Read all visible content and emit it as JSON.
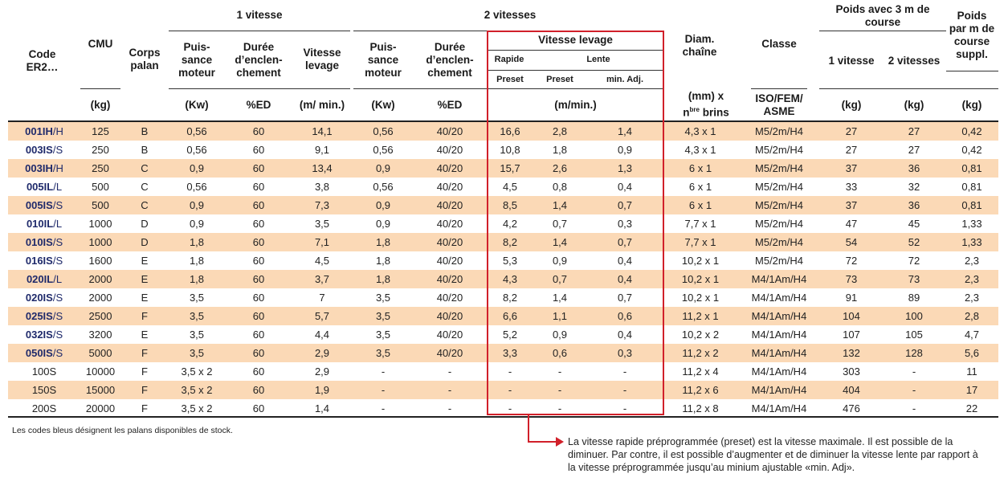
{
  "headers": {
    "group_1v": "1 vitesse",
    "group_2v": "2 vitesses",
    "group_poids": "Poids avec 3 m de course",
    "code": "Code ER2…",
    "cmu": "CMU",
    "corps": "Corps palan",
    "puissance": "Puis-sance moteur",
    "duree": "Durée d’enclen-chement",
    "vitesse": "Vitesse levage",
    "vitesse_levage_box": "Vitesse levage",
    "rapide": "Rapide",
    "lente": "Lente",
    "preset1": "Preset",
    "preset2": "Preset",
    "min_adj": "min. Adj.",
    "diam": "Diam. chaîne",
    "classe": "Classe",
    "poids_1v": "1 vitesse",
    "poids_2v": "2 vitesses",
    "poids_supp": "Poids par m de course suppl."
  },
  "units": {
    "cmu": "(kg)",
    "kw1": "(Kw)",
    "ed1": "%ED",
    "m_min1": "(m/ min.)",
    "kw2": "(Kw)",
    "ed2": "%ED",
    "m_min2": "(m/min.)",
    "diam_prefix": "(mm) x",
    "diam_n": "n",
    "diam_sup": "bre",
    "diam_suffix": " brins",
    "classe": "ISO/FEM/ ASME",
    "kg1": "(kg)",
    "kg2": "(kg)",
    "kg3": "(kg)"
  },
  "rows": [
    {
      "code": "001IH",
      "sfx": "/H",
      "blue": true,
      "cmu": "125",
      "corps": "B",
      "kw": "0,56",
      "ed": "60",
      "v": "14,1",
      "kw2": "0,56",
      "ed2": "40/20",
      "rap": "16,6",
      "lente": "2,8",
      "min": "1,4",
      "diam": "4,3 x 1",
      "classe": "M5/2m/H4",
      "p1": "27",
      "p2": "27",
      "ps": "0,42"
    },
    {
      "code": "003IS",
      "sfx": "/S",
      "blue": true,
      "cmu": "250",
      "corps": "B",
      "kw": "0,56",
      "ed": "60",
      "v": "9,1",
      "kw2": "0,56",
      "ed2": "40/20",
      "rap": "10,8",
      "lente": "1,8",
      "min": "0,9",
      "diam": "4,3 x 1",
      "classe": "M5/2m/H4",
      "p1": "27",
      "p2": "27",
      "ps": "0,42"
    },
    {
      "code": "003IH",
      "sfx": "/H",
      "blue": true,
      "cmu": "250",
      "corps": "C",
      "kw": "0,9",
      "ed": "60",
      "v": "13,4",
      "kw2": "0,9",
      "ed2": "40/20",
      "rap": "15,7",
      "lente": "2,6",
      "min": "1,3",
      "diam": "6 x 1",
      "classe": "M5/2m/H4",
      "p1": "37",
      "p2": "36",
      "ps": "0,81"
    },
    {
      "code": "005IL",
      "sfx": "/L",
      "blue": true,
      "cmu": "500",
      "corps": "C",
      "kw": "0,56",
      "ed": "60",
      "v": "3,8",
      "kw2": "0,56",
      "ed2": "40/20",
      "rap": "4,5",
      "lente": "0,8",
      "min": "0,4",
      "diam": "6 x 1",
      "classe": "M5/2m/H4",
      "p1": "33",
      "p2": "32",
      "ps": "0,81"
    },
    {
      "code": "005IS",
      "sfx": "/S",
      "blue": true,
      "cmu": "500",
      "corps": "C",
      "kw": "0,9",
      "ed": "60",
      "v": "7,3",
      "kw2": "0,9",
      "ed2": "40/20",
      "rap": "8,5",
      "lente": "1,4",
      "min": "0,7",
      "diam": "6 x 1",
      "classe": "M5/2m/H4",
      "p1": "37",
      "p2": "36",
      "ps": "0,81"
    },
    {
      "code": "010IL",
      "sfx": "/L",
      "blue": true,
      "cmu": "1000",
      "corps": "D",
      "kw": "0,9",
      "ed": "60",
      "v": "3,5",
      "kw2": "0,9",
      "ed2": "40/20",
      "rap": "4,2",
      "lente": "0,7",
      "min": "0,3",
      "diam": "7,7 x 1",
      "classe": "M5/2m/H4",
      "p1": "47",
      "p2": "45",
      "ps": "1,33"
    },
    {
      "code": "010IS",
      "sfx": "/S",
      "blue": true,
      "cmu": "1000",
      "corps": "D",
      "kw": "1,8",
      "ed": "60",
      "v": "7,1",
      "kw2": "1,8",
      "ed2": "40/20",
      "rap": "8,2",
      "lente": "1,4",
      "min": "0,7",
      "diam": "7,7 x 1",
      "classe": "M5/2m/H4",
      "p1": "54",
      "p2": "52",
      "ps": "1,33"
    },
    {
      "code": "016IS",
      "sfx": "/S",
      "blue": true,
      "cmu": "1600",
      "corps": "E",
      "kw": "1,8",
      "ed": "60",
      "v": "4,5",
      "kw2": "1,8",
      "ed2": "40/20",
      "rap": "5,3",
      "lente": "0,9",
      "min": "0,4",
      "diam": "10,2 x 1",
      "classe": "M5/2m/H4",
      "p1": "72",
      "p2": "72",
      "ps": "2,3"
    },
    {
      "code": "020IL",
      "sfx": "/L",
      "blue": true,
      "cmu": "2000",
      "corps": "E",
      "kw": "1,8",
      "ed": "60",
      "v": "3,7",
      "kw2": "1,8",
      "ed2": "40/20",
      "rap": "4,3",
      "lente": "0,7",
      "min": "0,4",
      "diam": "10,2 x 1",
      "classe": "M4/1Am/H4",
      "p1": "73",
      "p2": "73",
      "ps": "2,3"
    },
    {
      "code": "020IS",
      "sfx": "/S",
      "blue": true,
      "cmu": "2000",
      "corps": "E",
      "kw": "3,5",
      "ed": "60",
      "v": "7",
      "kw2": "3,5",
      "ed2": "40/20",
      "rap": "8,2",
      "lente": "1,4",
      "min": "0,7",
      "diam": "10,2 x 1",
      "classe": "M4/1Am/H4",
      "p1": "91",
      "p2": "89",
      "ps": "2,3"
    },
    {
      "code": "025IS",
      "sfx": "/S",
      "blue": true,
      "cmu": "2500",
      "corps": "F",
      "kw": "3,5",
      "ed": "60",
      "v": "5,7",
      "kw2": "3,5",
      "ed2": "40/20",
      "rap": "6,6",
      "lente": "1,1",
      "min": "0,6",
      "diam": "11,2 x 1",
      "classe": "M4/1Am/H4",
      "p1": "104",
      "p2": "100",
      "ps": "2,8"
    },
    {
      "code": "032IS",
      "sfx": "/S",
      "blue": true,
      "cmu": "3200",
      "corps": "E",
      "kw": "3,5",
      "ed": "60",
      "v": "4,4",
      "kw2": "3,5",
      "ed2": "40/20",
      "rap": "5,2",
      "lente": "0,9",
      "min": "0,4",
      "diam": "10,2 x 2",
      "classe": "M4/1Am/H4",
      "p1": "107",
      "p2": "105",
      "ps": "4,7"
    },
    {
      "code": "050IS",
      "sfx": "/S",
      "blue": true,
      "cmu": "5000",
      "corps": "F",
      "kw": "3,5",
      "ed": "60",
      "v": "2,9",
      "kw2": "3,5",
      "ed2": "40/20",
      "rap": "3,3",
      "lente": "0,6",
      "min": "0,3",
      "diam": "11,2 x 2",
      "classe": "M4/1Am/H4",
      "p1": "132",
      "p2": "128",
      "ps": "5,6"
    },
    {
      "code": "100S",
      "sfx": "",
      "blue": false,
      "cmu": "10000",
      "corps": "F",
      "kw": "3,5 x 2",
      "ed": "60",
      "v": "2,9",
      "kw2": "-",
      "ed2": "-",
      "rap": "-",
      "lente": "-",
      "min": "-",
      "diam": "11,2 x 4",
      "classe": "M4/1Am/H4",
      "p1": "303",
      "p2": "-",
      "ps": "11"
    },
    {
      "code": "150S",
      "sfx": "",
      "blue": false,
      "cmu": "15000",
      "corps": "F",
      "kw": "3,5 x 2",
      "ed": "60",
      "v": "1,9",
      "kw2": "-",
      "ed2": "-",
      "rap": "-",
      "lente": "-",
      "min": "-",
      "diam": "11,2 x 6",
      "classe": "M4/1Am/H4",
      "p1": "404",
      "p2": "-",
      "ps": "17"
    },
    {
      "code": "200S",
      "sfx": "",
      "blue": false,
      "cmu": "20000",
      "corps": "F",
      "kw": "3,5 x 2",
      "ed": "60",
      "v": "1,4",
      "kw2": "-",
      "ed2": "-",
      "rap": "-",
      "lente": "-",
      "min": "-",
      "diam": "11,2 x 8",
      "classe": "M4/1Am/H4",
      "p1": "476",
      "p2": "-",
      "ps": "22"
    }
  ],
  "footnote": "Les codes bleus désignent les palans disponibles de stock.",
  "callout": "La vitesse rapide préprogrammée (preset) est la vitesse maximale. Il est possible de la diminuer. Par contre, il est possible d’augmenter et de diminuer la vitesse lente par rapport à la vitesse préprogrammée jusqu’au minium ajustable «min. Adj».",
  "colors": {
    "odd_row": "#fbd9b6",
    "blue_code": "#1f2a6b",
    "red_box": "#d1202a"
  }
}
